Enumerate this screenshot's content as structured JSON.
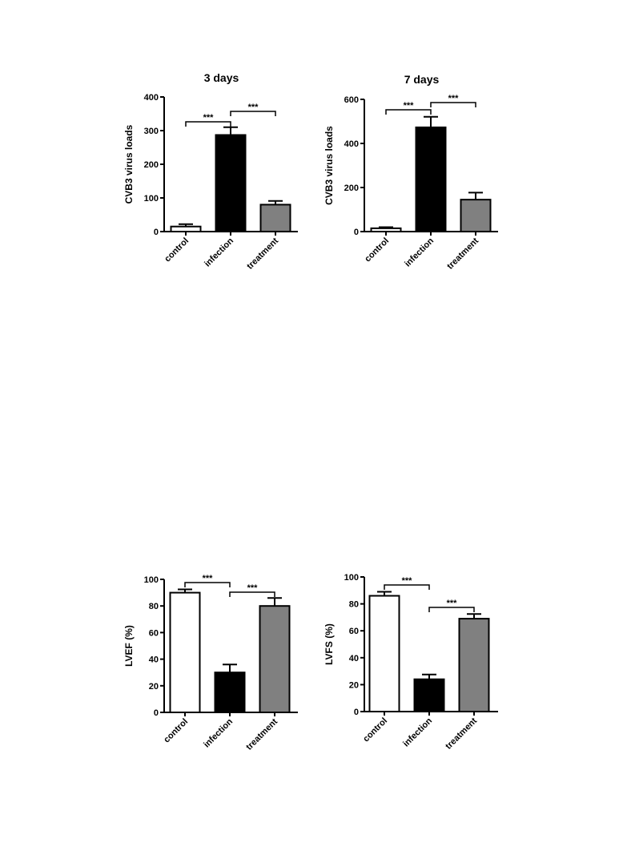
{
  "chart_data": [
    {
      "type": "bar",
      "title": "3 days",
      "ylabel": "CVB3 virus loads",
      "xlabel": "",
      "categories": [
        "control",
        "infection",
        "treatment"
      ],
      "values": [
        15,
        287,
        80
      ],
      "errors": [
        7,
        23,
        11
      ],
      "colors": [
        "#ffffff",
        "#000000",
        "#808080"
      ],
      "ylim": [
        0,
        400
      ],
      "yticks": [
        0,
        100,
        200,
        300,
        400
      ],
      "significance": [
        {
          "from": 0,
          "to": 1,
          "label": "***"
        },
        {
          "from": 1,
          "to": 2,
          "label": "***"
        }
      ]
    },
    {
      "type": "bar",
      "title": "7 days",
      "ylabel": "CVB3 virus loads",
      "xlabel": "",
      "categories": [
        "control",
        "infection",
        "treatment"
      ],
      "values": [
        15,
        473,
        145
      ],
      "errors": [
        5,
        48,
        32
      ],
      "colors": [
        "#ffffff",
        "#000000",
        "#808080"
      ],
      "ylim": [
        0,
        600
      ],
      "yticks": [
        0,
        200,
        400,
        600
      ],
      "significance": [
        {
          "from": 0,
          "to": 1,
          "label": "***"
        },
        {
          "from": 1,
          "to": 2,
          "label": "***"
        }
      ]
    },
    {
      "type": "bar",
      "title": "",
      "ylabel": "LVEF (%)",
      "xlabel": "",
      "categories": [
        "control",
        "infection",
        "treatment"
      ],
      "values": [
        90,
        30,
        80
      ],
      "errors": [
        2.5,
        6,
        6
      ],
      "colors": [
        "#ffffff",
        "#000000",
        "#808080"
      ],
      "ylim": [
        0,
        100
      ],
      "yticks": [
        0,
        20,
        40,
        60,
        80,
        100
      ],
      "significance": [
        {
          "from": 0,
          "to": 1,
          "label": "***"
        },
        {
          "from": 1,
          "to": 2,
          "label": "***"
        }
      ]
    },
    {
      "type": "bar",
      "title": "",
      "ylabel": "LVFS (%)",
      "xlabel": "",
      "categories": [
        "control",
        "infection",
        "treatment"
      ],
      "values": [
        86,
        24,
        69
      ],
      "errors": [
        3,
        3.5,
        3.5
      ],
      "colors": [
        "#ffffff",
        "#000000",
        "#808080"
      ],
      "ylim": [
        0,
        100
      ],
      "yticks": [
        0,
        20,
        40,
        60,
        80,
        100
      ],
      "significance": [
        {
          "from": 0,
          "to": 1,
          "label": "***"
        },
        {
          "from": 1,
          "to": 2,
          "label": "***"
        }
      ]
    }
  ]
}
